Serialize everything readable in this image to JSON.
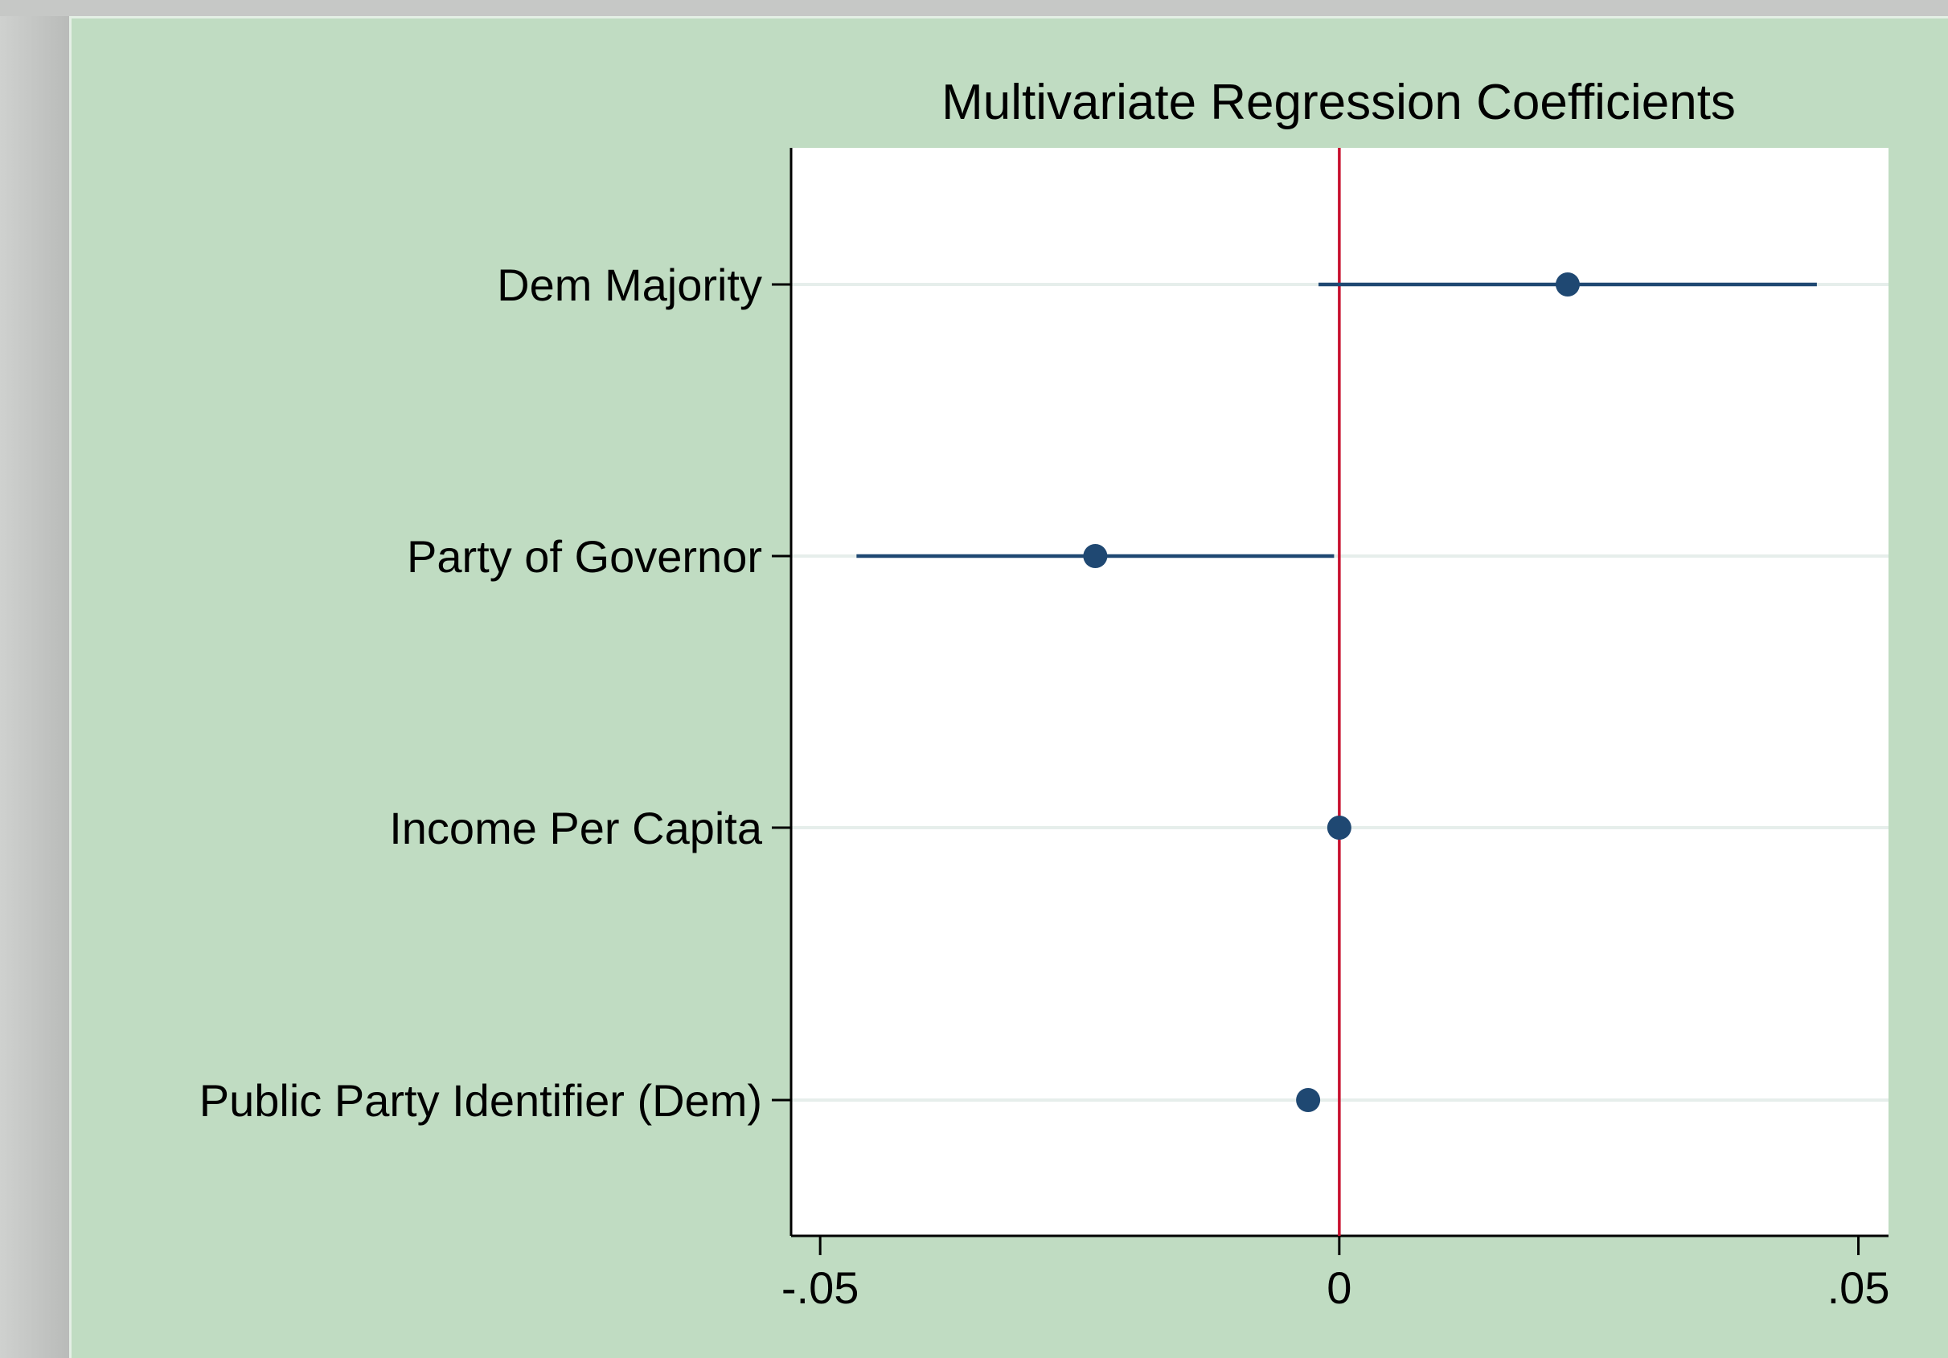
{
  "chart_data": {
    "type": "scatter",
    "title": "Multivariate Regression Coefficients",
    "xlabel": "",
    "ylabel": "",
    "xlim": [
      -0.0528,
      0.0529
    ],
    "xticks": [
      {
        "value": -0.05,
        "label": "-.05"
      },
      {
        "value": 0,
        "label": "0"
      },
      {
        "value": 0.05,
        "label": ".05"
      }
    ],
    "reference_line": {
      "x": 0,
      "color": "#c8102e"
    },
    "grid": true,
    "legend": "none",
    "marker_color": "#1f4872",
    "categories": [
      "Dem Majority",
      "Party of Governor",
      "Income Per Capita",
      "Public Party Identifier (Dem)"
    ],
    "series": [
      {
        "points": [
          {
            "label": "Dem Majority",
            "estimate": 0.022,
            "ci_low": -0.002,
            "ci_high": 0.046
          },
          {
            "label": "Party of Governor",
            "estimate": -0.0235,
            "ci_low": -0.0465,
            "ci_high": -0.0005
          },
          {
            "label": "Income Per Capita",
            "estimate": 0.0,
            "ci_low": 0.0,
            "ci_high": 0.0
          },
          {
            "label": "Public Party Identifier (Dem)",
            "estimate": -0.003,
            "ci_low": -0.003,
            "ci_high": -0.003
          }
        ]
      }
    ]
  }
}
